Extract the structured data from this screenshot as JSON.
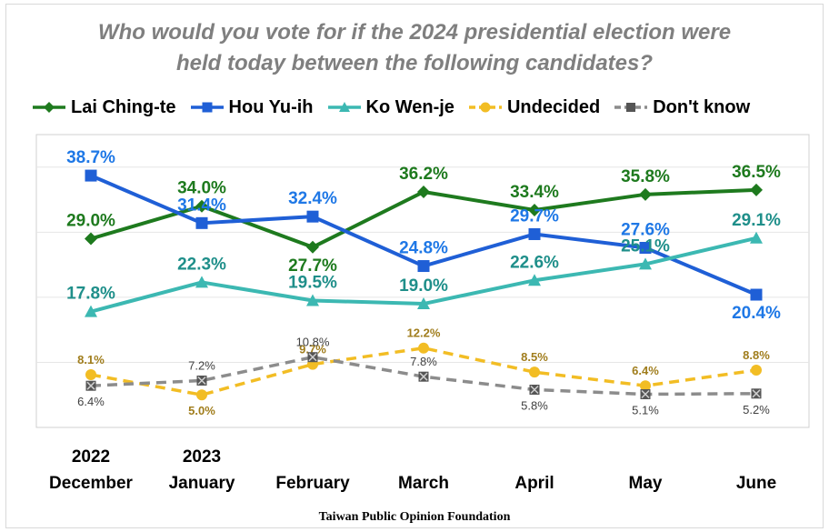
{
  "title_line1": "Who would you vote for if the 2024 presidential election were",
  "title_line2": "held today between the following candidates?",
  "source": "Taiwan Public Opinion Foundation",
  "chart_data": {
    "type": "line",
    "categories": [
      [
        "2022",
        "December"
      ],
      [
        "2023",
        "January"
      ],
      [
        "",
        "February"
      ],
      [
        "",
        "March"
      ],
      [
        "",
        "April"
      ],
      [
        "",
        "May"
      ],
      [
        "",
        "June"
      ]
    ],
    "ylim": [
      0,
      45
    ],
    "grid": true,
    "legend_position": "top",
    "series": [
      {
        "name": "Lai Ching-te",
        "color": "#1e7a1e",
        "label_color": "#1e7a1e",
        "marker": "diamond",
        "dash": "solid",
        "values": [
          29.0,
          34.0,
          27.7,
          36.2,
          33.4,
          35.8,
          36.5
        ],
        "labels": [
          "29.0%",
          "34.0%",
          "27.7%",
          "36.2%",
          "33.4%",
          "35.8%",
          "36.5%"
        ]
      },
      {
        "name": "Hou Yu-ih",
        "color": "#1f5fd6",
        "label_color": "#1f78e6",
        "marker": "square",
        "dash": "solid",
        "values": [
          38.7,
          31.4,
          32.4,
          24.8,
          29.7,
          27.6,
          20.4
        ],
        "labels": [
          "38.7%",
          "31.4%",
          "32.4%",
          "24.8%",
          "29.7%",
          "27.6%",
          "20.4%"
        ]
      },
      {
        "name": "Ko Wen-je",
        "color": "#3cb8b2",
        "label_color": "#1f8f8a",
        "marker": "triangle",
        "dash": "solid",
        "values": [
          17.8,
          22.3,
          19.5,
          19.0,
          22.6,
          25.1,
          29.1
        ],
        "labels": [
          "17.8%",
          "22.3%",
          "19.5%",
          "19.0%",
          "22.6%",
          "25.1%",
          "29.1%"
        ]
      },
      {
        "name": "Undecided",
        "color": "#f2bd24",
        "label_color": "#a07d1c",
        "marker": "circle",
        "dash": "dashed",
        "values": [
          8.1,
          5.0,
          9.7,
          12.2,
          8.5,
          6.4,
          8.8
        ],
        "labels": [
          "8.1%",
          "5.0%",
          "9.7%",
          "12.2%",
          "8.5%",
          "6.4%",
          "8.8%"
        ]
      },
      {
        "name": "Don't know",
        "color": "#7f7f7f",
        "label_color": "#404040",
        "marker": "x-square",
        "dash": "dashed",
        "values": [
          6.4,
          7.2,
          10.8,
          7.8,
          5.8,
          5.1,
          5.2
        ],
        "labels": [
          "6.4%",
          "7.2%",
          "10.8%",
          "7.8%",
          "5.8%",
          "5.1%",
          "5.2%"
        ]
      }
    ]
  }
}
